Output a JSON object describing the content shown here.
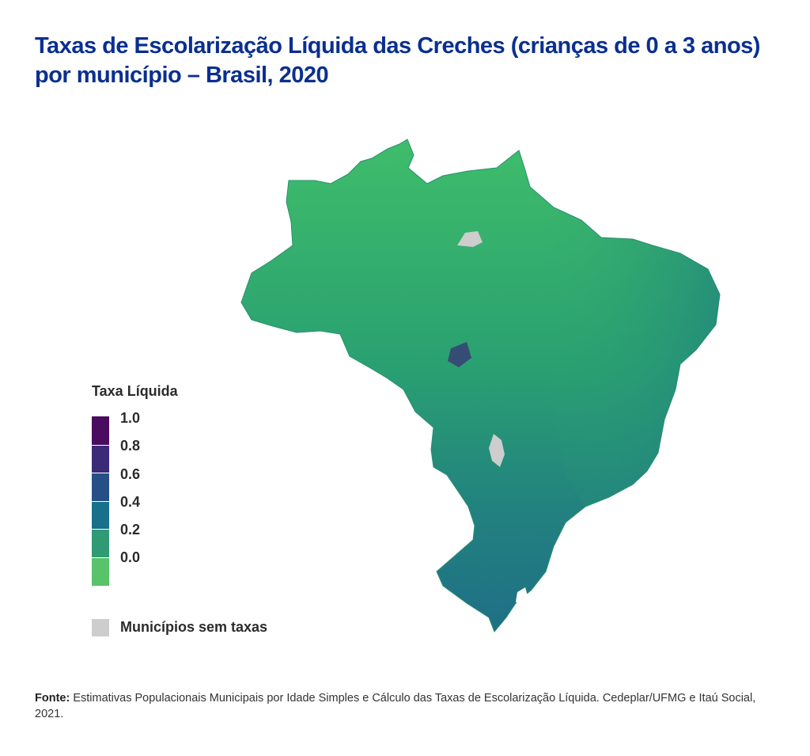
{
  "title": {
    "line1": "Taxas de Escolarização Líquida das Creches (crianças de 0 a 3 anos)",
    "line2": "por município – Brasil, 2020"
  },
  "legend": {
    "title": "Taxa Líquida",
    "ticks": [
      "1.0",
      "0.8",
      "0.6",
      "0.4",
      "0.2",
      "0.0"
    ],
    "scale_colors_top_to_bottom": [
      "#4a0c5f",
      "#3b2a78",
      "#264f86",
      "#18708a",
      "#2f9a74",
      "#58c36a"
    ],
    "missing_label": "Municípios sem taxas",
    "missing_color": "#cdcdcd"
  },
  "map": {
    "country": "Brasil",
    "base_color": "#2fa86e",
    "north_color": "#3fbd6a",
    "south_color": "#1f6f86"
  },
  "source": {
    "label": "Fonte:",
    "text": "Estimativas Populacionais Municipais por Idade Simples e Cálculo das Taxas de Escolarização Líquida. Cedeplar/UFMG e Itaú Social, 2021."
  }
}
